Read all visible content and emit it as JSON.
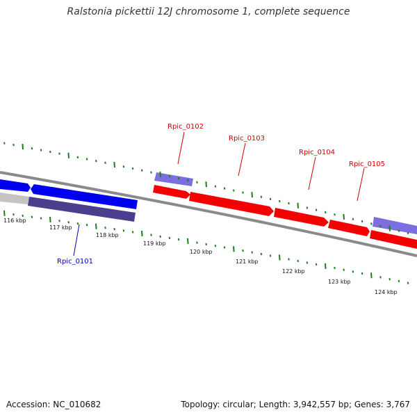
{
  "title": "Ralstonia pickettii 12J chromosome 1, complete sequence",
  "footer": {
    "accession": "Accession: NC_010682",
    "info": "Topology: circular; Length: 3,942,557 bp; Genes: 3,767"
  },
  "colors": {
    "forward_gene": "#f50000",
    "reverse_gene": "#0000f0",
    "forward_pseudo": "#7b6fe0",
    "reverse_pseudo": "#4a3f8c",
    "backbone": "#7a7a7a",
    "ticks": "#1e7d1e",
    "label_forward": "#cc0000",
    "label_reverse": "#0000aa"
  },
  "axis": {
    "tick_labels": [
      "116 kbp",
      "117 kbp",
      "118 kbp",
      "119 kbp",
      "120 kbp",
      "121 kbp",
      "122 kbp",
      "123 kbp",
      "124 kbp"
    ]
  },
  "genes": [
    {
      "label": "Rpic_0101",
      "strand": "reverse"
    },
    {
      "label": "Rpic_0102",
      "strand": "forward"
    },
    {
      "label": "Rpic_0103",
      "strand": "forward"
    },
    {
      "label": "Rpic_0104",
      "strand": "forward"
    },
    {
      "label": "Rpic_0105",
      "strand": "forward"
    }
  ]
}
